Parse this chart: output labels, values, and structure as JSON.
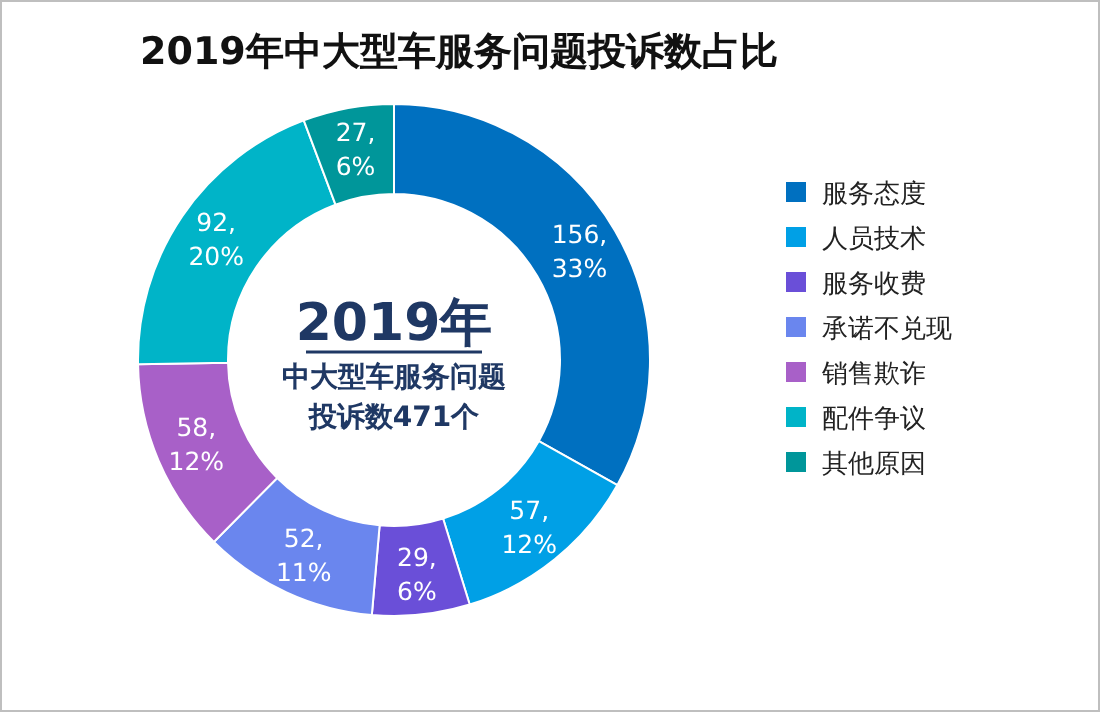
{
  "chart_data": {
    "type": "donut",
    "title": "2019年中大型车服务问题投诉数占比",
    "annotations": [
      "2019年",
      "中大型车服务问题",
      "投诉数471个"
    ],
    "categories": [
      "服务态度",
      "人员技术",
      "服务收费",
      "承诺不兑现",
      "销售欺诈",
      "配件争议",
      "其他原因"
    ],
    "values": [
      156,
      57,
      29,
      52,
      58,
      92,
      27
    ],
    "value_labels": [
      "156, 33%",
      "57, 12%",
      "29, 6%",
      "52, 11%",
      "58, 12%",
      "92, 20%",
      "27, 6%"
    ],
    "colors": [
      "#0070c0",
      "#00a0e6",
      "#6a4fd8",
      "#6a86ee",
      "#a860c8",
      "#00b4c8",
      "#00969a"
    ],
    "legend": "right"
  }
}
